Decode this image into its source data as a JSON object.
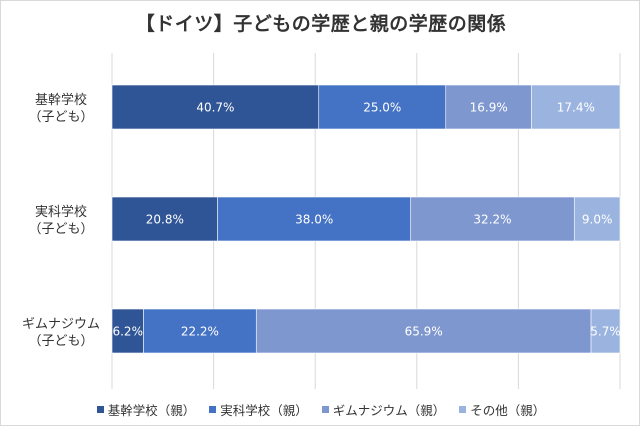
{
  "chart_data": {
    "type": "bar",
    "orientation": "horizontal",
    "stacked": true,
    "title": "【ドイツ】子どもの学歴と親の学歴の関係",
    "categories": [
      [
        "基幹学校",
        "（子ども）"
      ],
      [
        "実科学校",
        "（子ども）"
      ],
      [
        "ギムナジウム",
        "（子ども）"
      ]
    ],
    "series": [
      {
        "name": "基幹学校（親）",
        "values": [
          40.7,
          20.8,
          6.2
        ],
        "labels": [
          "40.7%",
          "20.8%",
          "6.2%"
        ],
        "color": "#2f5597"
      },
      {
        "name": "実科学校（親）",
        "values": [
          25.0,
          38.0,
          22.2
        ],
        "labels": [
          "25.0%",
          "38.0%",
          "22.2%"
        ],
        "color": "#4472c4"
      },
      {
        "name": "ギムナジウム（親）",
        "values": [
          16.9,
          32.2,
          65.9
        ],
        "labels": [
          "16.9%",
          "32.2%",
          "65.9%"
        ],
        "color": "#7f97cf"
      },
      {
        "name": "その他（親）",
        "values": [
          17.4,
          9.0,
          5.7
        ],
        "labels": [
          "17.4%",
          "9.0%",
          "5.7%"
        ],
        "color": "#9bb3df"
      }
    ],
    "xlim": [
      0,
      100
    ],
    "grid": true,
    "legend_position": "bottom"
  }
}
